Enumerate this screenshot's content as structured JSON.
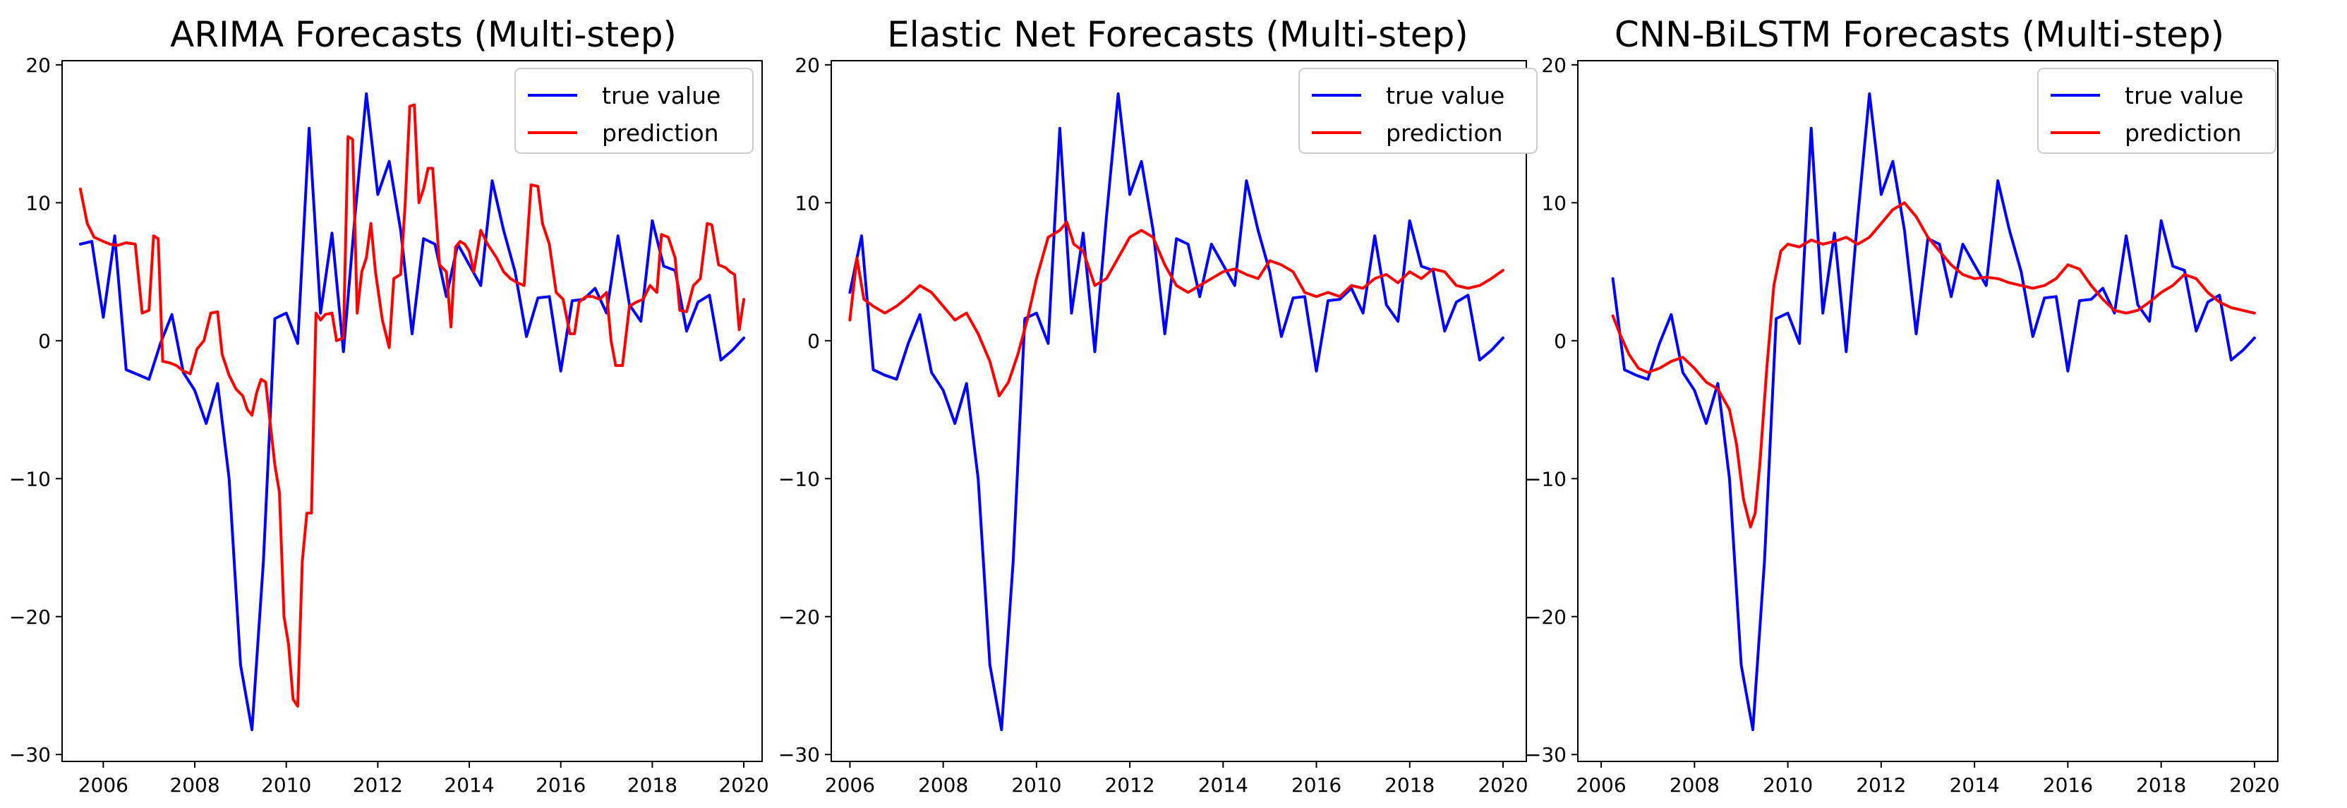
{
  "figure": {
    "colors": {
      "true": "#0000ff",
      "pred": "#ff0000"
    }
  },
  "chart_data": [
    {
      "type": "line",
      "title": "ARIMA Forecasts (Multi-step)",
      "xlabel": "",
      "ylabel": "",
      "xlim": [
        2005.1,
        2020.4
      ],
      "ylim": [
        -30.5,
        20.3
      ],
      "xticks": [
        2006,
        2008,
        2010,
        2012,
        2014,
        2016,
        2018,
        2020
      ],
      "yticks": [
        -30,
        -20,
        -10,
        0,
        10,
        20
      ],
      "legend": {
        "position": "top-right",
        "entries": [
          "true value",
          "prediction"
        ]
      },
      "series": [
        {
          "name": "true value",
          "x": [
            2005.5,
            2005.75,
            2006.0,
            2006.25,
            2006.5,
            2007.0,
            2007.25,
            2007.5,
            2007.75,
            2008.0,
            2008.25,
            2008.5,
            2008.75,
            2009.0,
            2009.25,
            2009.5,
            2009.75,
            2010.0,
            2010.25,
            2010.5,
            2010.75,
            2011.0,
            2011.25,
            2011.5,
            2011.75,
            2012.0,
            2012.25,
            2012.5,
            2012.75,
            2013.0,
            2013.25,
            2013.5,
            2013.75,
            2014.0,
            2014.25,
            2014.5,
            2014.75,
            2015.0,
            2015.25,
            2015.5,
            2015.75,
            2016.0,
            2016.25,
            2016.5,
            2016.75,
            2017.0,
            2017.25,
            2017.5,
            2017.75,
            2018.0,
            2018.25,
            2018.5,
            2018.75,
            2019.0,
            2019.25,
            2019.5,
            2019.75,
            2020.0
          ],
          "y": [
            7.0,
            7.2,
            1.7,
            7.6,
            -2.1,
            -2.8,
            -0.2,
            1.9,
            -2.3,
            -3.6,
            -6.0,
            -3.1,
            -10.0,
            -23.5,
            -28.2,
            -16.0,
            1.6,
            2.0,
            -0.2,
            15.4,
            2.0,
            7.8,
            -0.8,
            9.0,
            17.9,
            10.6,
            13.0,
            8.0,
            0.5,
            7.4,
            7.0,
            3.2,
            7.0,
            5.5,
            4.0,
            11.6,
            8.0,
            5.0,
            0.3,
            3.1,
            3.2,
            -2.2,
            2.9,
            3.0,
            3.8,
            2.0,
            7.6,
            2.6,
            1.4,
            8.7,
            5.4,
            5.1,
            0.7,
            2.8,
            3.3,
            -1.4,
            -0.7,
            0.2
          ]
        },
        {
          "name": "prediction",
          "x": [
            2005.5,
            2005.65,
            2005.8,
            2006.0,
            2006.15,
            2006.3,
            2006.5,
            2006.7,
            2006.85,
            2007.0,
            2007.1,
            2007.2,
            2007.3,
            2007.45,
            2007.6,
            2007.75,
            2007.9,
            2008.05,
            2008.2,
            2008.35,
            2008.5,
            2008.6,
            2008.75,
            2008.9,
            2009.05,
            2009.15,
            2009.25,
            2009.35,
            2009.45,
            2009.55,
            2009.65,
            2009.75,
            2009.85,
            2009.95,
            2010.05,
            2010.15,
            2010.25,
            2010.35,
            2010.45,
            2010.55,
            2010.65,
            2010.75,
            2010.85,
            2011.0,
            2011.1,
            2011.25,
            2011.35,
            2011.45,
            2011.55,
            2011.65,
            2011.75,
            2011.85,
            2011.95,
            2012.1,
            2012.25,
            2012.35,
            2012.5,
            2012.6,
            2012.7,
            2012.8,
            2012.9,
            2013.0,
            2013.1,
            2013.2,
            2013.35,
            2013.5,
            2013.6,
            2013.7,
            2013.8,
            2013.9,
            2014.0,
            2014.1,
            2014.25,
            2014.4,
            2014.5,
            2014.6,
            2014.75,
            2014.9,
            2015.05,
            2015.2,
            2015.35,
            2015.5,
            2015.6,
            2015.75,
            2015.9,
            2016.05,
            2016.2,
            2016.3,
            2016.4,
            2016.55,
            2016.7,
            2016.85,
            2017.0,
            2017.1,
            2017.2,
            2017.35,
            2017.5,
            2017.65,
            2017.8,
            2017.95,
            2018.1,
            2018.2,
            2018.35,
            2018.5,
            2018.6,
            2018.75,
            2018.9,
            2019.05,
            2019.2,
            2019.3,
            2019.45,
            2019.6,
            2019.7,
            2019.8,
            2019.9,
            2020.0
          ],
          "y": [
            11.0,
            8.5,
            7.5,
            7.2,
            7.0,
            6.9,
            7.1,
            7.0,
            2.0,
            2.2,
            7.6,
            7.4,
            -1.5,
            -1.6,
            -1.8,
            -2.2,
            -2.4,
            -0.6,
            0.0,
            2.0,
            2.1,
            -1.0,
            -2.5,
            -3.5,
            -4.0,
            -5.0,
            -5.4,
            -3.8,
            -2.8,
            -3.0,
            -6.0,
            -9.0,
            -11.0,
            -20.0,
            -22.0,
            -26.0,
            -26.5,
            -16.0,
            -12.5,
            -12.5,
            2.0,
            1.5,
            1.9,
            2.0,
            0.0,
            0.2,
            14.8,
            14.6,
            2.0,
            5.0,
            6.0,
            8.5,
            5.0,
            1.5,
            -0.5,
            4.5,
            4.8,
            10.0,
            17.0,
            17.1,
            10.0,
            11.0,
            12.5,
            12.5,
            5.5,
            5.0,
            1.0,
            6.8,
            7.2,
            7.0,
            6.5,
            5.0,
            8.0,
            7.0,
            6.5,
            6.0,
            5.0,
            4.5,
            4.2,
            4.0,
            11.3,
            11.2,
            8.5,
            7.0,
            3.5,
            3.0,
            0.5,
            0.5,
            2.8,
            3.2,
            3.2,
            3.0,
            3.5,
            0.0,
            -1.8,
            -1.8,
            2.5,
            2.8,
            3.0,
            4.0,
            3.5,
            7.7,
            7.5,
            6.0,
            2.2,
            2.1,
            4.0,
            4.5,
            8.5,
            8.4,
            5.5,
            5.3,
            5.0,
            4.8,
            0.8,
            3.0
          ]
        }
      ]
    },
    {
      "type": "line",
      "title": "Elastic Net Forecasts (Multi-step)",
      "xlabel": "",
      "ylabel": "",
      "xlim": [
        2005.6,
        2020.5
      ],
      "ylim": [
        -30.5,
        20.3
      ],
      "xticks": [
        2006,
        2008,
        2010,
        2012,
        2014,
        2016,
        2018,
        2020
      ],
      "yticks": [
        -30,
        -20,
        -10,
        0,
        10,
        20
      ],
      "legend": {
        "position": "top-right",
        "entries": [
          "true value",
          "prediction"
        ]
      },
      "series": [
        {
          "name": "true value",
          "x": [
            2006.0,
            2006.25,
            2006.5,
            2006.75,
            2007.0,
            2007.25,
            2007.5,
            2007.75,
            2008.0,
            2008.25,
            2008.5,
            2008.75,
            2009.0,
            2009.25,
            2009.5,
            2009.75,
            2010.0,
            2010.25,
            2010.5,
            2010.75,
            2011.0,
            2011.25,
            2011.5,
            2011.75,
            2012.0,
            2012.25,
            2012.5,
            2012.75,
            2013.0,
            2013.25,
            2013.5,
            2013.75,
            2014.0,
            2014.25,
            2014.5,
            2014.75,
            2015.0,
            2015.25,
            2015.5,
            2015.75,
            2016.0,
            2016.25,
            2016.5,
            2016.75,
            2017.0,
            2017.25,
            2017.5,
            2017.75,
            2018.0,
            2018.25,
            2018.5,
            2018.75,
            2019.0,
            2019.25,
            2019.5,
            2019.75,
            2020.0
          ],
          "y": [
            3.5,
            7.6,
            -2.1,
            -2.5,
            -2.8,
            -0.2,
            1.9,
            -2.3,
            -3.6,
            -6.0,
            -3.1,
            -10.0,
            -23.5,
            -28.2,
            -16.0,
            1.6,
            2.0,
            -0.2,
            15.4,
            2.0,
            7.8,
            -0.8,
            9.0,
            17.9,
            10.6,
            13.0,
            8.0,
            0.5,
            7.4,
            7.0,
            3.2,
            7.0,
            5.5,
            4.0,
            11.6,
            8.0,
            5.0,
            0.3,
            3.1,
            3.2,
            -2.2,
            2.9,
            3.0,
            3.8,
            2.0,
            7.6,
            2.6,
            1.4,
            8.7,
            5.4,
            5.1,
            0.7,
            2.8,
            3.3,
            -1.4,
            -0.7,
            0.2
          ]
        },
        {
          "name": "prediction",
          "x": [
            2006.0,
            2006.15,
            2006.3,
            2006.5,
            2006.75,
            2007.0,
            2007.25,
            2007.5,
            2007.75,
            2008.0,
            2008.25,
            2008.5,
            2008.75,
            2009.0,
            2009.2,
            2009.4,
            2009.6,
            2009.8,
            2010.0,
            2010.25,
            2010.5,
            2010.65,
            2010.8,
            2011.0,
            2011.25,
            2011.5,
            2011.75,
            2012.0,
            2012.25,
            2012.5,
            2012.75,
            2013.0,
            2013.25,
            2013.5,
            2013.75,
            2014.0,
            2014.25,
            2014.5,
            2014.75,
            2015.0,
            2015.25,
            2015.5,
            2015.75,
            2016.0,
            2016.25,
            2016.5,
            2016.75,
            2017.0,
            2017.25,
            2017.5,
            2017.75,
            2018.0,
            2018.25,
            2018.5,
            2018.75,
            2019.0,
            2019.25,
            2019.5,
            2019.75,
            2020.0
          ],
          "y": [
            1.5,
            6.0,
            3.0,
            2.5,
            2.0,
            2.5,
            3.2,
            4.0,
            3.5,
            2.5,
            1.5,
            2.0,
            0.5,
            -1.5,
            -4.0,
            -3.0,
            -1.0,
            1.5,
            4.5,
            7.5,
            8.0,
            8.6,
            7.0,
            6.5,
            4.0,
            4.5,
            6.0,
            7.5,
            8.0,
            7.5,
            5.5,
            4.0,
            3.5,
            4.0,
            4.5,
            5.0,
            5.2,
            4.8,
            4.5,
            5.8,
            5.5,
            5.0,
            3.5,
            3.2,
            3.5,
            3.2,
            4.0,
            3.8,
            4.5,
            4.8,
            4.2,
            5.0,
            4.5,
            5.2,
            5.0,
            4.0,
            3.8,
            4.0,
            4.5,
            5.1
          ]
        }
      ]
    },
    {
      "type": "line",
      "title": "CNN-BiLSTM Forecasts (Multi-step)",
      "xlabel": "",
      "ylabel": "",
      "xlim": [
        2005.5,
        2020.5
      ],
      "ylim": [
        -30.5,
        20.3
      ],
      "xticks": [
        2006,
        2008,
        2010,
        2012,
        2014,
        2016,
        2018,
        2020
      ],
      "yticks": [
        -30,
        -20,
        -10,
        0,
        10,
        20
      ],
      "legend": {
        "position": "top-right",
        "entries": [
          "true value",
          "prediction"
        ]
      },
      "series": [
        {
          "name": "true value",
          "x": [
            2006.25,
            2006.5,
            2006.75,
            2007.0,
            2007.25,
            2007.5,
            2007.75,
            2008.0,
            2008.25,
            2008.5,
            2008.75,
            2009.0,
            2009.25,
            2009.5,
            2009.75,
            2010.0,
            2010.25,
            2010.5,
            2010.75,
            2011.0,
            2011.25,
            2011.5,
            2011.75,
            2012.0,
            2012.25,
            2012.5,
            2012.75,
            2013.0,
            2013.25,
            2013.5,
            2013.75,
            2014.0,
            2014.25,
            2014.5,
            2014.75,
            2015.0,
            2015.25,
            2015.5,
            2015.75,
            2016.0,
            2016.25,
            2016.5,
            2016.75,
            2017.0,
            2017.25,
            2017.5,
            2017.75,
            2018.0,
            2018.25,
            2018.5,
            2018.75,
            2019.0,
            2019.25,
            2019.5,
            2019.75,
            2020.0
          ],
          "y": [
            4.5,
            -2.1,
            -2.5,
            -2.8,
            -0.2,
            1.9,
            -2.3,
            -3.6,
            -6.0,
            -3.1,
            -10.0,
            -23.5,
            -28.2,
            -16.0,
            1.6,
            2.0,
            -0.2,
            15.4,
            2.0,
            7.8,
            -0.8,
            9.0,
            17.9,
            10.6,
            13.0,
            8.0,
            0.5,
            7.4,
            7.0,
            3.2,
            7.0,
            5.5,
            4.0,
            11.6,
            8.0,
            5.0,
            0.3,
            3.1,
            3.2,
            -2.2,
            2.9,
            3.0,
            3.8,
            2.0,
            7.6,
            2.6,
            1.4,
            8.7,
            5.4,
            5.1,
            0.7,
            2.8,
            3.3,
            -1.4,
            -0.7,
            0.2
          ]
        },
        {
          "name": "prediction",
          "x": [
            2006.25,
            2006.4,
            2006.6,
            2006.8,
            2007.0,
            2007.25,
            2007.5,
            2007.75,
            2008.0,
            2008.25,
            2008.5,
            2008.75,
            2008.9,
            2009.05,
            2009.2,
            2009.3,
            2009.4,
            2009.55,
            2009.7,
            2009.85,
            2010.0,
            2010.25,
            2010.5,
            2010.75,
            2011.0,
            2011.25,
            2011.5,
            2011.75,
            2012.0,
            2012.25,
            2012.5,
            2012.75,
            2013.0,
            2013.25,
            2013.5,
            2013.75,
            2014.0,
            2014.25,
            2014.5,
            2014.75,
            2015.0,
            2015.25,
            2015.5,
            2015.75,
            2016.0,
            2016.25,
            2016.5,
            2016.75,
            2017.0,
            2017.25,
            2017.5,
            2017.75,
            2018.0,
            2018.25,
            2018.5,
            2018.75,
            2019.0,
            2019.25,
            2019.5,
            2019.75,
            2020.0
          ],
          "y": [
            1.8,
            0.5,
            -1.0,
            -2.0,
            -2.3,
            -2.0,
            -1.5,
            -1.2,
            -2.0,
            -3.0,
            -3.5,
            -5.0,
            -7.5,
            -11.5,
            -13.5,
            -12.5,
            -9.0,
            -2.0,
            4.0,
            6.5,
            7.0,
            6.8,
            7.3,
            7.0,
            7.2,
            7.5,
            7.0,
            7.5,
            8.5,
            9.5,
            10.0,
            9.0,
            7.5,
            6.5,
            5.5,
            4.8,
            4.5,
            4.6,
            4.5,
            4.2,
            4.0,
            3.8,
            4.0,
            4.5,
            5.5,
            5.2,
            4.0,
            3.0,
            2.2,
            2.0,
            2.2,
            2.8,
            3.5,
            4.0,
            4.8,
            4.5,
            3.5,
            2.8,
            2.4,
            2.2,
            2.0
          ]
        }
      ]
    }
  ]
}
